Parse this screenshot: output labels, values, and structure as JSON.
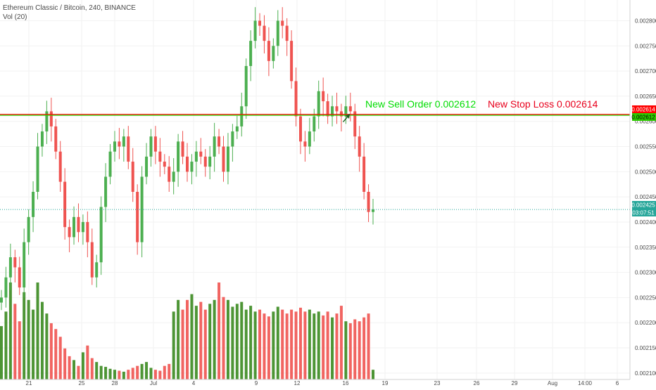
{
  "legend": {
    "symbol": "Ethereum Classic / Bitcoin, 240, BINANCE",
    "volume_indicator": "Vol (20)"
  },
  "annotations": {
    "sell_order": "New Sell Order 0.002612",
    "stop_loss": "New Stop Loss 0.002614"
  },
  "price_labels": {
    "stop_loss": "0.002614",
    "sell_order": "0.002612",
    "last_price": "0.002425",
    "countdown": "03:07:51"
  },
  "colors": {
    "up": "#4caf50",
    "down": "#ef5350",
    "volume_up": "#3a8a1f",
    "volume_down": "#ef5350",
    "stop_line": "#ff0000",
    "sell_line": "#2ecc00",
    "last_line": "#26a69a",
    "sell_text": "#00dd00",
    "stop_text": "#e8001c",
    "arrow": "#1b5e20",
    "grid": "#f2f2f2",
    "axis_text": "#4a4a4a"
  },
  "chart_data": {
    "type": "candlestick",
    "y_axis_ticks": [
      "0.002800",
      "0.002750",
      "0.002700",
      "0.002650",
      "0.002600",
      "0.002550",
      "0.002500",
      "0.002450",
      "0.002400",
      "0.002350",
      "0.002300",
      "0.002250",
      "0.002200",
      "0.002150",
      "0.002100"
    ],
    "x_axis_ticks": [
      "21",
      "25",
      "28",
      "Jul",
      "4",
      "9",
      "12",
      "16",
      "19",
      "23",
      "26",
      "29",
      "Aug",
      "14:00",
      "6"
    ],
    "price_range": [
      0.00209,
      0.00283
    ],
    "series": [
      {
        "name": "price",
        "values": [
          0.00225,
          0.00229,
          0.00233,
          0.00231,
          0.00227,
          0.00236,
          0.00241,
          0.00246,
          0.00255,
          0.00258,
          0.00262,
          0.00259,
          0.00254,
          0.00248,
          0.00239,
          0.00237,
          0.00241,
          0.00238,
          0.0024,
          0.00236,
          0.00229,
          0.00232,
          0.00243,
          0.00249,
          0.00254,
          0.00256,
          0.00255,
          0.00257,
          0.00252,
          0.00246,
          0.00236,
          0.00249,
          0.00253,
          0.00257,
          0.00254,
          0.00252,
          0.00251,
          0.00248,
          0.0025,
          0.00256,
          0.00253,
          0.0025,
          0.00252,
          0.00254,
          0.00253,
          0.00251,
          0.00253,
          0.00257,
          0.00255,
          0.0025,
          0.00255,
          0.00258,
          0.00259,
          0.00263,
          0.00271,
          0.00276,
          0.0028,
          0.00279,
          0.00276,
          0.00272,
          0.00275,
          0.0028,
          0.00279,
          0.00276,
          0.00268,
          0.00261,
          0.00256,
          0.00255,
          0.00258,
          0.00261,
          0.00266,
          0.00264,
          0.00261,
          0.00263,
          0.00262,
          0.00261,
          0.00263,
          0.00262,
          0.00257,
          0.00253,
          0.00246,
          0.00242,
          0.002425
        ]
      },
      {
        "name": "volume",
        "values": [
          55,
          70,
          100,
          78,
          60,
          90,
          82,
          72,
          100,
          80,
          68,
          58,
          52,
          44,
          32,
          24,
          20,
          14,
          28,
          35,
          22,
          18,
          14,
          13,
          11,
          10,
          9,
          8,
          10,
          12,
          14,
          16,
          18,
          12,
          10,
          9,
          14,
          16,
          70,
          82,
          72,
          82,
          88,
          76,
          80,
          72,
          78,
          82,
          100,
          85,
          82,
          75,
          78,
          80,
          72,
          76,
          70,
          72,
          68,
          65,
          70,
          75,
          72,
          68,
          72,
          70,
          74,
          70,
          72,
          68,
          70,
          66,
          70,
          64,
          68,
          76,
          60,
          58,
          62,
          60,
          64,
          68,
          10
        ]
      }
    ]
  }
}
